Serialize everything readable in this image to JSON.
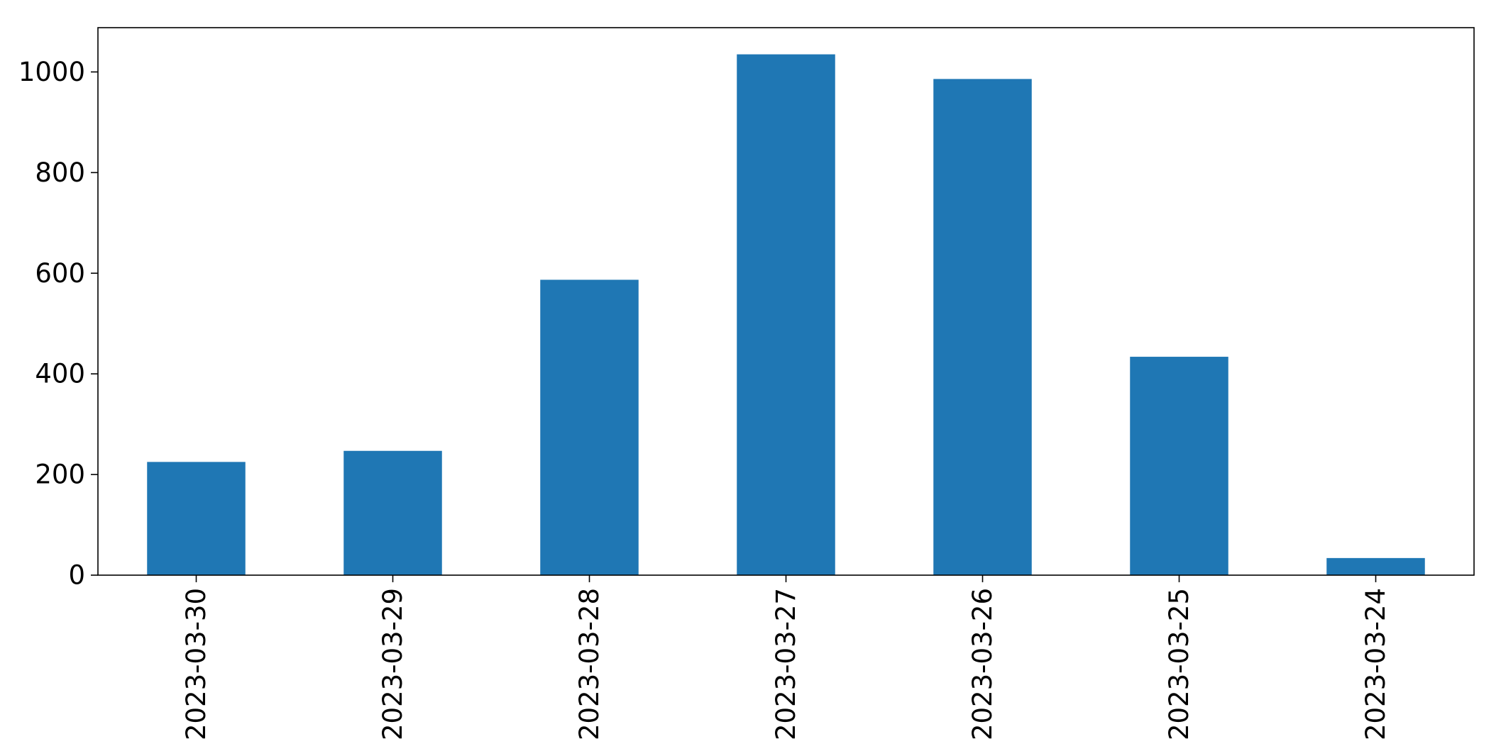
{
  "chart_data": {
    "type": "bar",
    "title": "",
    "xlabel": "",
    "ylabel": "",
    "categories": [
      "2023-03-30",
      "2023-03-29",
      "2023-03-28",
      "2023-03-27",
      "2023-03-26",
      "2023-03-25",
      "2023-03-24"
    ],
    "values": [
      225,
      247,
      587,
      1035,
      986,
      434,
      34
    ],
    "ylim": [
      0,
      1088
    ],
    "yticks": [
      0,
      200,
      400,
      600,
      800,
      1000
    ],
    "bar_color": "#1f77b4",
    "grid": false,
    "legend": false
  }
}
